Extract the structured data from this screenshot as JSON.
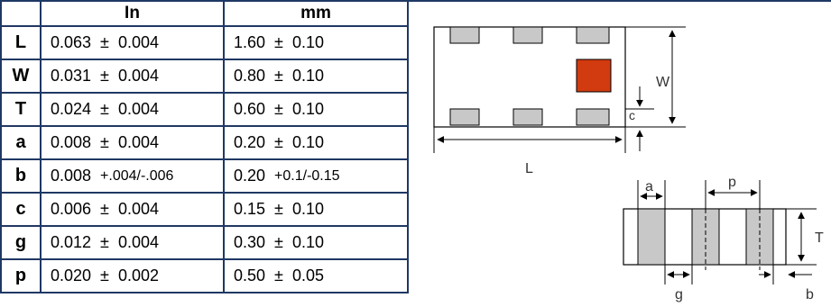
{
  "table": {
    "header": {
      "col_param": "",
      "col_in": "In",
      "col_mm": "mm"
    },
    "rows": [
      {
        "param": "L",
        "in_nom": "0.063",
        "in_pm": "±",
        "in_tol": "0.004",
        "mm_nom": "1.60",
        "mm_pm": "±",
        "mm_tol": "0.10"
      },
      {
        "param": "W",
        "in_nom": "0.031",
        "in_pm": "±",
        "in_tol": "0.004",
        "mm_nom": "0.80",
        "mm_pm": "±",
        "mm_tol": "0.10"
      },
      {
        "param": "T",
        "in_nom": "0.024",
        "in_pm": "±",
        "in_tol": "0.004",
        "mm_nom": "0.60",
        "mm_pm": "±",
        "mm_tol": "0.10"
      },
      {
        "param": "a",
        "in_nom": "0.008",
        "in_pm": "±",
        "in_tol": "0.004",
        "mm_nom": "0.20",
        "mm_pm": "±",
        "mm_tol": "0.10"
      },
      {
        "param": "b",
        "in_nom": "0.008",
        "in_pm": "",
        "in_tol": "+.004/-.006",
        "mm_nom": "0.20",
        "mm_pm": "",
        "mm_tol": "+0.1/-0.15"
      },
      {
        "param": "c",
        "in_nom": "0.006",
        "in_pm": "±",
        "in_tol": "0.004",
        "mm_nom": "0.15",
        "mm_pm": "±",
        "mm_tol": "0.10"
      },
      {
        "param": "g",
        "in_nom": "0.012",
        "in_pm": "±",
        "in_tol": "0.004",
        "mm_nom": "0.30",
        "mm_pm": "±",
        "mm_tol": "0.10"
      },
      {
        "param": "p",
        "in_nom": "0.020",
        "in_pm": "±",
        "in_tol": "0.002",
        "mm_nom": "0.50",
        "mm_pm": "±",
        "mm_tol": "0.05"
      }
    ]
  },
  "drawing": {
    "labels": {
      "W": "W",
      "c": "c",
      "L": "L",
      "a": "a",
      "p": "p",
      "T": "T",
      "g": "g",
      "b": "b"
    },
    "colors": {
      "terminal": "#c8c8c8",
      "pin1": "#d23a10",
      "line": "#000000",
      "border": "#1f3864"
    }
  }
}
